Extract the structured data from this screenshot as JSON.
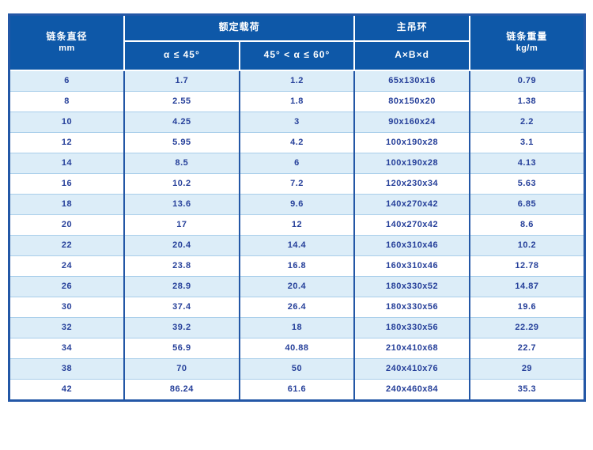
{
  "table": {
    "header": {
      "diameter": "链条直径",
      "diameter_unit": "mm",
      "rated_load": "额定载荷",
      "rated_load_sub1": "α ≤ 45°",
      "rated_load_sub2": "45° < α ≤ 60°",
      "main_ring": "主吊环",
      "main_ring_sub": "A×B×d",
      "chain_weight": "链条重量",
      "chain_weight_unit": "kg/m"
    }
  },
  "chart_data": {
    "type": "table",
    "columns": [
      "链条直径 (mm)",
      "额定载荷 α ≤ 45°",
      "额定载荷 45° < α ≤ 60°",
      "主吊环 A×B×d",
      "链条重量 (kg/m)"
    ],
    "rows": [
      [
        "6",
        "1.7",
        "1.2",
        "65x130x16",
        "0.79"
      ],
      [
        "8",
        "2.55",
        "1.8",
        "80x150x20",
        "1.38"
      ],
      [
        "10",
        "4.25",
        "3",
        "90x160x24",
        "2.2"
      ],
      [
        "12",
        "5.95",
        "4.2",
        "100x190x28",
        "3.1"
      ],
      [
        "14",
        "8.5",
        "6",
        "100x190x28",
        "4.13"
      ],
      [
        "16",
        "10.2",
        "7.2",
        "120x230x34",
        "5.63"
      ],
      [
        "18",
        "13.6",
        "9.6",
        "140x270x42",
        "6.85"
      ],
      [
        "20",
        "17",
        "12",
        "140x270x42",
        "8.6"
      ],
      [
        "22",
        "20.4",
        "14.4",
        "160x310x46",
        "10.2"
      ],
      [
        "24",
        "23.8",
        "16.8",
        "160x310x46",
        "12.78"
      ],
      [
        "26",
        "28.9",
        "20.4",
        "180x330x52",
        "14.87"
      ],
      [
        "30",
        "37.4",
        "26.4",
        "180x330x56",
        "19.6"
      ],
      [
        "32",
        "39.2",
        "18",
        "180x330x56",
        "22.29"
      ],
      [
        "34",
        "56.9",
        "40.88",
        "210x410x68",
        "22.7"
      ],
      [
        "38",
        "70",
        "50",
        "240x410x76",
        "29"
      ],
      [
        "42",
        "86.24",
        "61.6",
        "240x460x84",
        "35.3"
      ]
    ],
    "layout": {
      "row_striping": "odd rows light blue, even rows white",
      "header_rows": 2
    }
  },
  "colors": {
    "header_bg": "#0E58A8",
    "header_text": "#FFFFFF",
    "border_dark": "#2357A6",
    "row_separator": "#A9CEEA",
    "row_alt_bg": "#DCEDF8",
    "row_bg": "#FFFFFF",
    "cell_text": "#26409A",
    "page_bg": "#FFFFFF"
  }
}
